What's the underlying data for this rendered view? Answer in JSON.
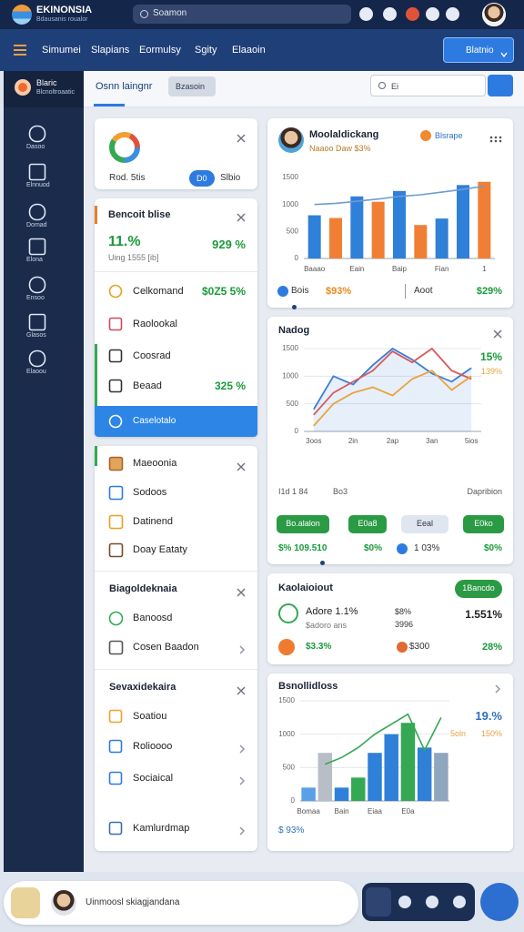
{
  "topbar": {
    "brand": "EKINONSIA",
    "brand_sub": "Bdausanis roualor",
    "search": "Soamon"
  },
  "nav": {
    "items": [
      "Simumei",
      "Slapians",
      "Eormulsy",
      "Sgity",
      "Elaaoin"
    ],
    "button": "Blatnio"
  },
  "sidebar": {
    "title": "Blaric",
    "subtitle": "Blcnoltroaatic",
    "items": [
      "Dasoo",
      "Elnnuod",
      "Domad",
      "Elona",
      "Ensoo",
      "Glasos",
      "Elaoou"
    ]
  },
  "subbar": {
    "tab": "Osnn laingnr",
    "chip": "Bzasoin",
    "search": "Ei"
  },
  "card_a": {
    "label": "Rod. 5tis",
    "pill": "D0",
    "value": "Slbio"
  },
  "card_b": {
    "title": "Bencoit blise",
    "stat1": "11.%",
    "stat2": "929 %",
    "note": "Uing 1555 [ib]",
    "items": [
      {
        "label": "Celkomand",
        "value": "$0Z5 5%"
      },
      {
        "label": "Raolookal"
      },
      {
        "label": "Coosrad"
      },
      {
        "label": "Beaad",
        "value": "325 %"
      },
      {
        "label": "Caselotalo"
      }
    ]
  },
  "card_c": {
    "items": [
      "Maeoonia",
      "Sodoos",
      "Datinend",
      "Doay Eataty"
    ],
    "section1": {
      "title": "Biagoldeknaia",
      "items": [
        "Banoosd",
        "Cosen Baadon"
      ]
    },
    "section2": {
      "title": "Sevaxidekaira",
      "items": [
        "Soatiou",
        "Rolioooo",
        "Sociaical",
        "Kamlurdmap"
      ]
    }
  },
  "card_d": {
    "title": "Moolaldickang",
    "subtitle": "Naaoo Daw $3%",
    "chip": "Blsrape",
    "foot": [
      "Bois",
      "$93%",
      "Aoot",
      "$29%"
    ]
  },
  "card_e": {
    "title": "Nadog",
    "annot1": "15%",
    "annot2": "139%",
    "row": [
      "I1d 1 84",
      "Bo3",
      "Dapribion"
    ],
    "buttons": [
      "Bo.alalon",
      "E0a8",
      "Eeal",
      "E0ko"
    ],
    "stats": [
      "$% 109.510",
      "$0%",
      "1 03%",
      "$0%"
    ]
  },
  "card_f": {
    "title": "Kaolaioiout",
    "pill": "1Bancdo",
    "a": "Adore 1.1%",
    "a_sub": "$adoro ans",
    "b": "$8%",
    "b_sub": "3996",
    "c": "1.551%",
    "d": "$3.3%",
    "e": "$300",
    "f": "28%"
  },
  "card_g": {
    "title": "Bsnollidloss",
    "annot1": "19.%",
    "annot2": "5oln",
    "annot3": "150%",
    "foot": "$ 93%"
  },
  "bottom": {
    "text": "Uinmoosl skiagjandana"
  },
  "chart_data": [
    {
      "type": "bar",
      "ylim": [
        0,
        1500
      ],
      "yticks": [
        0,
        500,
        1000,
        1500
      ],
      "grid": false,
      "categories": [
        "Baaao",
        null,
        "Eain",
        null,
        "Baip",
        null,
        "Fian",
        null,
        "1"
      ],
      "values": [
        800,
        750,
        1150,
        1050,
        1250,
        620,
        740,
        1360,
        1420
      ],
      "colors": [
        "#2f80d8",
        "#f07f35",
        "#2f80d8",
        "#f07f35",
        "#2f80d8",
        "#f07f35",
        "#2f80d8",
        "#2f80d8",
        "#f07f35"
      ],
      "trend": {
        "color": "#6d9bd3",
        "values": [
          1000,
          1020,
          1060,
          1100,
          1150,
          1180,
          1230,
          1280,
          1340
        ]
      }
    },
    {
      "type": "line",
      "ylim": [
        0,
        1500
      ],
      "yticks": [
        0,
        500,
        1000,
        1500
      ],
      "grid": true,
      "categories": [
        "3oos",
        null,
        "2in",
        null,
        "2ap",
        null,
        "3an",
        null,
        "5ios"
      ],
      "series": [
        {
          "color": "#3b7dd8",
          "values": [
            400,
            1000,
            850,
            1200,
            1500,
            1300,
            1050,
            900,
            1150
          ],
          "area": true
        },
        {
          "color": "#d95a5a",
          "values": [
            300,
            700,
            900,
            1100,
            1450,
            1250,
            1500,
            1100,
            950
          ]
        },
        {
          "color": "#e8a33d",
          "values": [
            100,
            500,
            700,
            800,
            650,
            950,
            1100,
            750,
            1000
          ]
        }
      ]
    },
    {
      "type": "bar",
      "ylim": [
        0,
        1500
      ],
      "yticks": [
        0,
        500,
        1000,
        1500
      ],
      "grid": true,
      "categories": [
        "Bomaa",
        null,
        "Bain",
        null,
        "Eiaa",
        null,
        "E0a",
        null,
        null
      ],
      "values": [
        200,
        720,
        200,
        350,
        720,
        1000,
        1170,
        800,
        720
      ],
      "colors": [
        "#5aa0e6",
        "#b8bec6",
        "#2f80d8",
        "#34a853",
        "#2f80d8",
        "#2f80d8",
        "#34a853",
        "#2f80d8",
        "#8fa6bf"
      ],
      "trend": {
        "color": "#34a853",
        "values": [
          null,
          550,
          650,
          800,
          1000,
          1150,
          1300,
          760,
          1250
        ]
      }
    }
  ]
}
